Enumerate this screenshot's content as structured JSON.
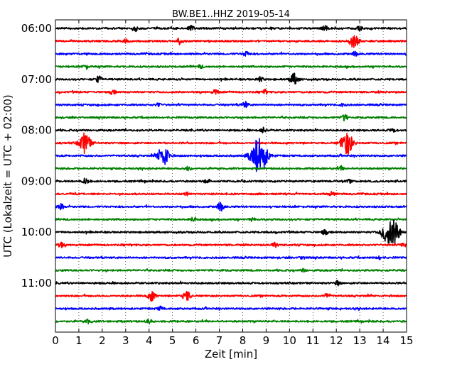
{
  "chart_data": {
    "type": "line",
    "subtype": "helicorder",
    "title": "BW.BE1..HHZ 2019-05-14",
    "xlabel": "Zeit  [min]",
    "ylabel": "UTC (Lokalzeit = UTC + 02:00)",
    "xlim": [
      0,
      15
    ],
    "x_ticks": [
      0,
      1,
      2,
      3,
      4,
      5,
      6,
      7,
      8,
      9,
      10,
      11,
      12,
      13,
      14,
      15
    ],
    "x_tick_labels": [
      "0",
      "1",
      "2",
      "3",
      "4",
      "5",
      "6",
      "7",
      "8",
      "9",
      "10",
      "11",
      "12",
      "13",
      "14",
      "15"
    ],
    "y_tick_labels": [
      {
        "row": 0,
        "label": "06:00"
      },
      {
        "row": 4,
        "label": "07:00"
      },
      {
        "row": 8,
        "label": "08:00"
      },
      {
        "row": 12,
        "label": "09:00"
      },
      {
        "row": 16,
        "label": "10:00"
      },
      {
        "row": 20,
        "label": "11:00"
      }
    ],
    "grid": "vertical-dotted",
    "row_minutes": 15,
    "series_colors": [
      "#000000",
      "#ff0000",
      "#0000ff",
      "#008000"
    ],
    "traces": [
      {
        "start": "06:00",
        "color": "#000000",
        "events": [
          {
            "t": 3.45,
            "a": 0.5
          },
          {
            "t": 5.8,
            "a": 0.5
          },
          {
            "t": 11.5,
            "a": 0.5
          },
          {
            "t": 13.0,
            "a": 0.4
          }
        ]
      },
      {
        "start": "06:15",
        "color": "#ff0000",
        "events": [
          {
            "t": 3.0,
            "a": 0.4
          },
          {
            "t": 5.3,
            "a": 0.6
          },
          {
            "t": 12.75,
            "a": 1.3
          }
        ]
      },
      {
        "start": "06:30",
        "color": "#0000ff",
        "events": [
          {
            "t": 8.15,
            "a": 0.5
          },
          {
            "t": 12.8,
            "a": 0.4
          }
        ]
      },
      {
        "start": "06:45",
        "color": "#008000",
        "events": [
          {
            "t": 1.3,
            "a": 0.4
          },
          {
            "t": 6.2,
            "a": 0.3
          }
        ]
      },
      {
        "start": "07:00",
        "color": "#000000",
        "events": [
          {
            "t": 1.85,
            "a": 0.6
          },
          {
            "t": 8.75,
            "a": 0.5
          },
          {
            "t": 10.2,
            "a": 1.1
          }
        ]
      },
      {
        "start": "07:15",
        "color": "#ff0000",
        "events": [
          {
            "t": 2.45,
            "a": 0.4
          },
          {
            "t": 6.85,
            "a": 0.5
          },
          {
            "t": 8.95,
            "a": 0.4
          }
        ]
      },
      {
        "start": "07:30",
        "color": "#0000ff",
        "events": [
          {
            "t": 4.4,
            "a": 0.3
          },
          {
            "t": 8.1,
            "a": 0.6
          },
          {
            "t": 12.3,
            "a": 0.3
          }
        ]
      },
      {
        "start": "07:45",
        "color": "#008000",
        "events": [
          {
            "t": 12.35,
            "a": 0.6
          }
        ]
      },
      {
        "start": "08:00",
        "color": "#000000",
        "events": [
          {
            "t": 8.9,
            "a": 0.5
          },
          {
            "t": 14.4,
            "a": 0.4
          }
        ]
      },
      {
        "start": "08:15",
        "color": "#ff0000",
        "events": [
          {
            "t": 1.25,
            "a": 2.0
          },
          {
            "t": 12.45,
            "a": 2.2
          }
        ]
      },
      {
        "start": "08:30",
        "color": "#0000ff",
        "events": [
          {
            "t": 4.6,
            "a": 2.0
          },
          {
            "t": 8.7,
            "a": 3.5
          }
        ]
      },
      {
        "start": "08:45",
        "color": "#008000",
        "events": [
          {
            "t": 5.65,
            "a": 0.4
          },
          {
            "t": 12.2,
            "a": 0.4
          }
        ]
      },
      {
        "start": "09:00",
        "color": "#000000",
        "events": [
          {
            "t": 1.3,
            "a": 0.6
          },
          {
            "t": 6.5,
            "a": 0.4
          },
          {
            "t": 12.55,
            "a": 0.3
          }
        ]
      },
      {
        "start": "09:15",
        "color": "#ff0000",
        "events": [
          {
            "t": 5.6,
            "a": 0.3
          },
          {
            "t": 11.8,
            "a": 0.4
          }
        ]
      },
      {
        "start": "09:30",
        "color": "#0000ff",
        "events": [
          {
            "t": 0.25,
            "a": 0.5
          },
          {
            "t": 7.05,
            "a": 0.8
          }
        ]
      },
      {
        "start": "09:45",
        "color": "#008000",
        "events": [
          {
            "t": 5.9,
            "a": 0.4
          },
          {
            "t": 8.4,
            "a": 0.3
          }
        ]
      },
      {
        "start": "10:00",
        "color": "#000000",
        "events": [
          {
            "t": 11.5,
            "a": 0.5
          },
          {
            "t": 14.1,
            "a": 1.6
          },
          {
            "t": 14.45,
            "a": 2.4
          }
        ]
      },
      {
        "start": "10:15",
        "color": "#ff0000",
        "events": [
          {
            "t": 0.25,
            "a": 0.5
          },
          {
            "t": 9.35,
            "a": 0.5
          },
          {
            "t": 14.85,
            "a": 0.4
          }
        ]
      },
      {
        "start": "10:30",
        "color": "#0000ff",
        "events": [
          {
            "t": 10.55,
            "a": 0.3
          },
          {
            "t": 13.8,
            "a": 0.4
          }
        ]
      },
      {
        "start": "10:45",
        "color": "#008000",
        "events": [
          {
            "t": 10.6,
            "a": 0.3
          }
        ]
      },
      {
        "start": "11:00",
        "color": "#000000",
        "events": [
          {
            "t": 12.05,
            "a": 0.4
          }
        ]
      },
      {
        "start": "11:15",
        "color": "#ff0000",
        "events": [
          {
            "t": 4.1,
            "a": 1.0
          },
          {
            "t": 5.6,
            "a": 1.0
          },
          {
            "t": 11.6,
            "a": 0.5
          }
        ]
      },
      {
        "start": "11:30",
        "color": "#0000ff",
        "events": [
          {
            "t": 4.5,
            "a": 0.4
          }
        ]
      },
      {
        "start": "11:45",
        "color": "#008000",
        "events": [
          {
            "t": 1.4,
            "a": 0.4
          },
          {
            "t": 4.0,
            "a": 0.4
          }
        ]
      }
    ]
  }
}
